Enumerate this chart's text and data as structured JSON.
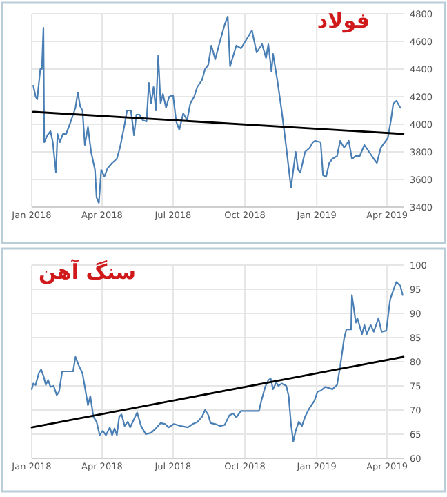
{
  "chart_data": [
    {
      "type": "line",
      "title": "فولاد",
      "xlim": [
        "2018-01-01",
        "2019-04-23"
      ],
      "ylim": [
        3400,
        4800
      ],
      "yticks": [
        3400,
        3600,
        3800,
        4000,
        4200,
        4400,
        4600,
        4800
      ],
      "xticks": [
        {
          "value": "2018-01-01",
          "label": "Jan 2018"
        },
        {
          "value": "2018-04-01",
          "label": "Apr 2018"
        },
        {
          "value": "2018-07-01",
          "label": "Jul 2018"
        },
        {
          "value": "2018-10-01",
          "label": "Oct 2018"
        },
        {
          "value": "2019-01-01",
          "label": "Jan 2019"
        },
        {
          "value": "2019-04-01",
          "label": "Apr 2019"
        }
      ],
      "grid": true,
      "series": [
        {
          "color": "#4a7fb5",
          "x": [
            "2018-01-03",
            "2018-01-06",
            "2018-01-08",
            "2018-01-12",
            "2018-01-14",
            "2018-01-16",
            "2018-01-17",
            "2018-01-21",
            "2018-01-25",
            "2018-01-28",
            "2018-02-01",
            "2018-02-03",
            "2018-02-06",
            "2018-02-10",
            "2018-02-14",
            "2018-02-20",
            "2018-02-26",
            "2018-03-01",
            "2018-03-04",
            "2018-03-07",
            "2018-03-10",
            "2018-03-14",
            "2018-03-18",
            "2018-03-23",
            "2018-03-25",
            "2018-03-28",
            "2018-03-31",
            "2018-04-04",
            "2018-04-08",
            "2018-04-14",
            "2018-04-20",
            "2018-04-24",
            "2018-04-30",
            "2018-05-03",
            "2018-05-08",
            "2018-05-12",
            "2018-05-15",
            "2018-05-19",
            "2018-05-23",
            "2018-05-28",
            "2018-05-31",
            "2018-06-03",
            "2018-06-06",
            "2018-06-09",
            "2018-06-12",
            "2018-06-15",
            "2018-06-18",
            "2018-06-22",
            "2018-06-26",
            "2018-07-01",
            "2018-07-05",
            "2018-07-09",
            "2018-07-14",
            "2018-07-19",
            "2018-07-23",
            "2018-07-28",
            "2018-08-01",
            "2018-08-07",
            "2018-08-11",
            "2018-08-15",
            "2018-08-19",
            "2018-08-24",
            "2018-08-30",
            "2018-09-05",
            "2018-09-09",
            "2018-09-12",
            "2018-09-20",
            "2018-09-26",
            "2018-10-10",
            "2018-10-16",
            "2018-10-23",
            "2018-10-28",
            "2018-10-31",
            "2018-11-04",
            "2018-11-06",
            "2018-11-12",
            "2018-11-17",
            "2018-11-23",
            "2018-11-29",
            "2018-12-05",
            "2018-12-08",
            "2018-12-11",
            "2018-12-17",
            "2018-12-23",
            "2018-12-27",
            "2018-12-30",
            "2019-01-06",
            "2019-01-09",
            "2019-01-13",
            "2019-01-17",
            "2019-01-21",
            "2019-01-27",
            "2019-01-31",
            "2019-02-05",
            "2019-02-11",
            "2019-02-15",
            "2019-02-20",
            "2019-02-25",
            "2019-03-03",
            "2019-03-09",
            "2019-03-15",
            "2019-03-19",
            "2019-03-24",
            "2019-04-02",
            "2019-04-06",
            "2019-04-09",
            "2019-04-13",
            "2019-04-18"
          ],
          "values": [
            4280,
            4200,
            4180,
            4400,
            4400,
            4700,
            3870,
            3920,
            3950,
            3870,
            3650,
            3930,
            3870,
            3930,
            3930,
            4020,
            4120,
            4230,
            4130,
            4100,
            3850,
            3980,
            3800,
            3670,
            3470,
            3430,
            3670,
            3620,
            3680,
            3720,
            3750,
            3830,
            4000,
            4100,
            4100,
            3920,
            4070,
            4070,
            4030,
            4020,
            4300,
            4150,
            4270,
            4100,
            4500,
            4150,
            4220,
            4120,
            4200,
            4210,
            4020,
            3960,
            4080,
            4030,
            4150,
            4200,
            4270,
            4320,
            4400,
            4430,
            4570,
            4470,
            4600,
            4720,
            4780,
            4420,
            4570,
            4550,
            4680,
            4520,
            4580,
            4480,
            4580,
            4380,
            4510,
            4300,
            4100,
            3830,
            3540,
            3800,
            3670,
            3650,
            3800,
            3830,
            3870,
            3880,
            3870,
            3630,
            3620,
            3720,
            3750,
            3770,
            3880,
            3830,
            3880,
            3750,
            3770,
            3770,
            3850,
            3800,
            3750,
            3720,
            3830,
            3900,
            4030,
            4150,
            4170,
            4120
          ]
        },
        {
          "color": "#000000",
          "x": [
            "2018-01-03",
            "2019-04-22"
          ],
          "values": [
            4090,
            3930
          ]
        }
      ]
    },
    {
      "type": "line",
      "title": "سنگ آهن",
      "xlim": [
        "2018-01-01",
        "2019-04-23"
      ],
      "ylim": [
        60,
        100
      ],
      "yticks": [
        60,
        65,
        70,
        75,
        80,
        85,
        90,
        95,
        100
      ],
      "xticks": [
        {
          "value": "2018-01-01",
          "label": "Jan 2018"
        },
        {
          "value": "2018-04-01",
          "label": "Apr 2018"
        },
        {
          "value": "2018-07-01",
          "label": "Jul 2018"
        },
        {
          "value": "2018-10-01",
          "label": "Oct 2018"
        },
        {
          "value": "2019-01-01",
          "label": "Jan 2019"
        },
        {
          "value": "2019-04-01",
          "label": "Apr 2019"
        }
      ],
      "grid": true,
      "series": [
        {
          "color": "#4a7fb5",
          "x": [
            "2018-01-01",
            "2018-01-03",
            "2018-01-06",
            "2018-01-10",
            "2018-01-13",
            "2018-01-16",
            "2018-01-19",
            "2018-01-22",
            "2018-01-25",
            "2018-01-29",
            "2018-02-02",
            "2018-02-05",
            "2018-02-09",
            "2018-02-14",
            "2018-02-23",
            "2018-02-26",
            "2018-03-02",
            "2018-03-07",
            "2018-03-10",
            "2018-03-14",
            "2018-03-17",
            "2018-03-21",
            "2018-03-25",
            "2018-03-29",
            "2018-04-02",
            "2018-04-06",
            "2018-04-11",
            "2018-04-14",
            "2018-04-17",
            "2018-04-20",
            "2018-04-23",
            "2018-04-26",
            "2018-04-30",
            "2018-05-04",
            "2018-05-07",
            "2018-05-12",
            "2018-05-16",
            "2018-05-21",
            "2018-05-27",
            "2018-06-03",
            "2018-06-09",
            "2018-06-15",
            "2018-06-21",
            "2018-06-25",
            "2018-07-02",
            "2018-07-11",
            "2018-07-20",
            "2018-07-26",
            "2018-08-01",
            "2018-08-07",
            "2018-08-11",
            "2018-08-15",
            "2018-08-18",
            "2018-08-24",
            "2018-08-30",
            "2018-09-05",
            "2018-09-11",
            "2018-09-16",
            "2018-09-20",
            "2018-09-26",
            "2018-10-04",
            "2018-10-13",
            "2018-10-19",
            "2018-10-22",
            "2018-10-27",
            "2018-10-31",
            "2018-11-03",
            "2018-11-06",
            "2018-11-10",
            "2018-11-13",
            "2018-11-17",
            "2018-11-23",
            "2018-11-26",
            "2018-11-29",
            "2018-12-02",
            "2018-12-05",
            "2018-12-09",
            "2018-12-13",
            "2018-12-17",
            "2018-12-23",
            "2018-12-29",
            "2019-01-02",
            "2019-01-06",
            "2019-01-12",
            "2019-01-21",
            "2019-01-27",
            "2019-01-31",
            "2019-02-05",
            "2019-02-08",
            "2019-02-14",
            "2019-02-15",
            "2019-02-20",
            "2019-02-22",
            "2019-02-28",
            "2019-03-03",
            "2019-03-06",
            "2019-03-11",
            "2019-03-15",
            "2019-03-21",
            "2019-03-25",
            "2019-03-31",
            "2019-04-05",
            "2019-04-09",
            "2019-04-13",
            "2019-04-18",
            "2019-04-21"
          ],
          "values": [
            74.3,
            75.5,
            75.2,
            77.6,
            78.4,
            77.1,
            75.2,
            76.2,
            74.8,
            75.0,
            73.1,
            73.8,
            78.0,
            78.0,
            78.0,
            81.0,
            79.3,
            77.6,
            74.8,
            71.0,
            72.9,
            68.6,
            67.6,
            64.8,
            65.7,
            64.8,
            66.4,
            64.8,
            66.2,
            64.8,
            68.6,
            69.1,
            66.7,
            67.6,
            66.4,
            68.1,
            69.5,
            66.7,
            65.0,
            65.3,
            66.2,
            67.3,
            67.1,
            66.4,
            67.1,
            66.7,
            66.4,
            67.1,
            67.5,
            68.6,
            70.0,
            69.0,
            67.3,
            67.1,
            66.7,
            66.9,
            68.9,
            69.3,
            68.5,
            69.8,
            69.8,
            69.8,
            69.8,
            71.9,
            74.8,
            76.2,
            76.5,
            74.3,
            75.7,
            75.0,
            75.5,
            75.0,
            72.9,
            67.1,
            63.5,
            65.7,
            67.6,
            66.7,
            68.6,
            70.5,
            71.9,
            73.8,
            74.0,
            74.8,
            74.3,
            75.2,
            79.0,
            84.8,
            86.7,
            86.7,
            93.8,
            88.1,
            89.0,
            85.7,
            87.6,
            85.7,
            87.6,
            86.2,
            89.0,
            86.2,
            86.4,
            92.9,
            94.8,
            96.5,
            95.7,
            93.8
          ]
        },
        {
          "color": "#000000",
          "x": [
            "2018-01-01",
            "2019-04-22"
          ],
          "values": [
            66.4,
            81.0
          ]
        }
      ]
    }
  ]
}
